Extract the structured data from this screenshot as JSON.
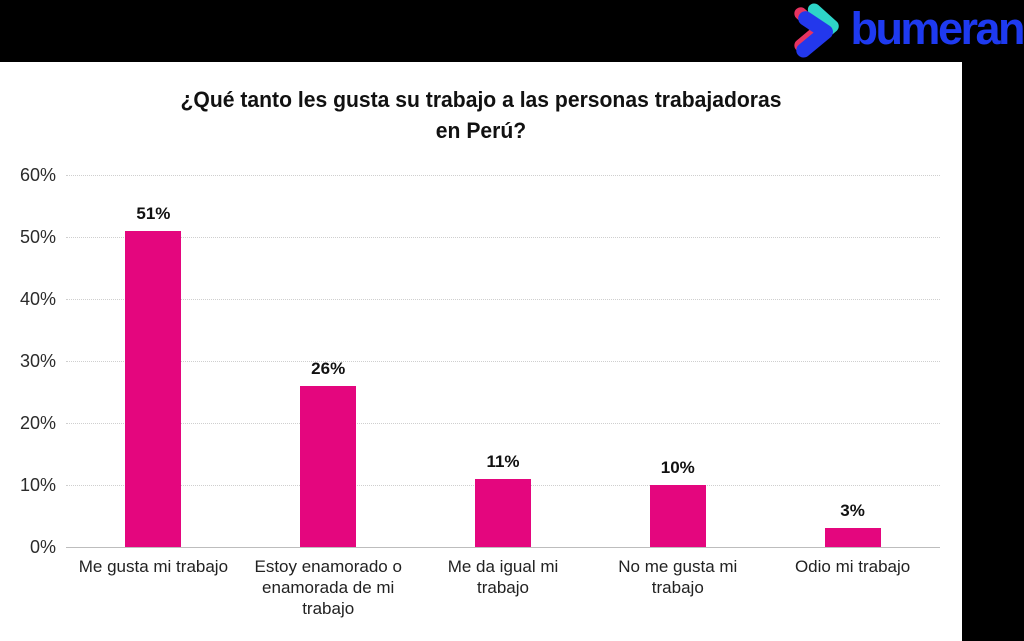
{
  "background_color": "#000000",
  "card_color": "#FFFFFF",
  "logo": {
    "text": "bumeran",
    "text_color": "#1E3AF0",
    "icon": {
      "name": "boomerang-chevron-icon",
      "teal": "#2ED5C8",
      "pink": "#E73360",
      "blue": "#2338EC"
    }
  },
  "chart_data": {
    "type": "bar",
    "title": "¿Qué tanto les gusta su trabajo a las personas trabajadoras en Perú?",
    "title_lines": [
      "¿Qué tanto les gusta su trabajo a las personas trabajadoras",
      "en Perú?"
    ],
    "categories": [
      "Me gusta mi trabajo",
      "Estoy enamorado o enamorada de mi trabajo",
      "Me da igual mi trabajo",
      "No me gusta mi trabajo",
      "Odio mi trabajo"
    ],
    "categories_lines": [
      [
        "Me gusta mi trabajo"
      ],
      [
        "Estoy enamorado o",
        "enamorada de mi",
        "trabajo"
      ],
      [
        "Me da igual mi",
        "trabajo"
      ],
      [
        "No me gusta mi",
        "trabajo"
      ],
      [
        "Odio mi trabajo"
      ]
    ],
    "values": [
      51,
      26,
      11,
      10,
      3
    ],
    "value_labels": [
      "51%",
      "26%",
      "11%",
      "10%",
      "3%"
    ],
    "y_ticks": [
      "60%",
      "50%",
      "40%",
      "30%",
      "20%",
      "10%",
      "0%"
    ],
    "ylim": [
      0,
      60
    ],
    "xlabel": "",
    "ylabel": "",
    "bar_color": "#E4067E",
    "gridline_color": "#CFCFCF",
    "grid": true,
    "legend": "none"
  }
}
